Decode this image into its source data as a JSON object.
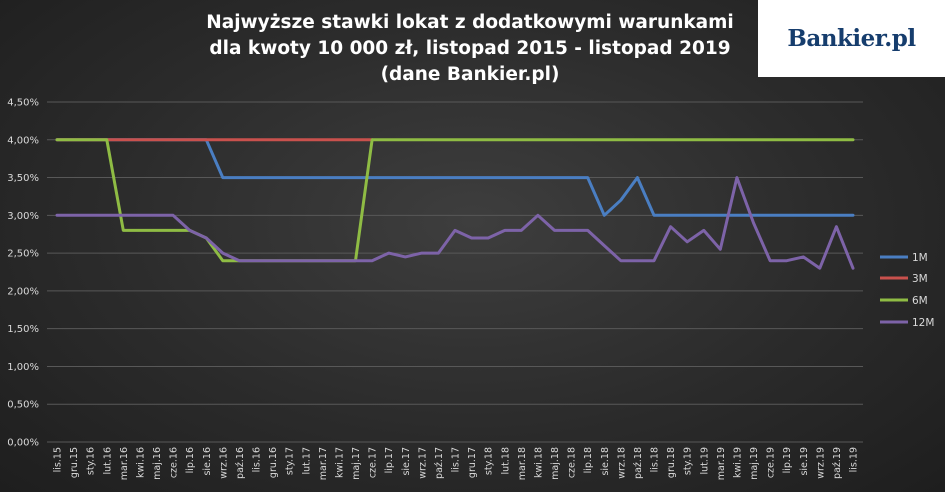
{
  "title_lines": [
    "Najwyższe stawki lokat z dodatkowymi warunkami",
    "dla kwoty 10 000 zł, listopad 2015 - listopad 2019",
    "(dane Bankier.pl)"
  ],
  "logo_text": "Bankier.pl",
  "chart_data": {
    "type": "line",
    "ylim": [
      0,
      4.5
    ],
    "y_ticks": [
      "0,00%",
      "0,50%",
      "1,00%",
      "1,50%",
      "2,00%",
      "2,50%",
      "3,00%",
      "3,50%",
      "4,00%",
      "4,50%"
    ],
    "grid": true,
    "legend_position": "right",
    "categories": [
      "lis.15",
      "gru.15",
      "sty.16",
      "lut.16",
      "mar.16",
      "kwi.16",
      "maj.16",
      "cze.16",
      "lip.16",
      "sie.16",
      "wrz.16",
      "paź.16",
      "lis.16",
      "gru.16",
      "sty.17",
      "lut.17",
      "mar.17",
      "kwi.17",
      "maj.17",
      "cze.17",
      "lip.17",
      "sie.17",
      "wrz.17",
      "paź.17",
      "lis.17",
      "gru.17",
      "sty.18",
      "lut.18",
      "mar.18",
      "kwi.18",
      "maj.18",
      "cze.18",
      "lip.18",
      "sie.18",
      "wrz.18",
      "paź.18",
      "lis.18",
      "gru.18",
      "sty.19",
      "lut.19",
      "mar.19",
      "kwi.19",
      "maj.19",
      "cze.19",
      "lip.19",
      "sie.19",
      "wrz.19",
      "paź.19",
      "lis.19"
    ],
    "series": [
      {
        "name": "1M",
        "color": "#4a7ec2",
        "values": [
          4,
          4,
          4,
          4,
          4,
          4,
          4,
          4,
          4,
          4,
          3.5,
          3.5,
          3.5,
          3.5,
          3.5,
          3.5,
          3.5,
          3.5,
          3.5,
          3.5,
          3.5,
          3.5,
          3.5,
          3.5,
          3.5,
          3.5,
          3.5,
          3.5,
          3.5,
          3.5,
          3.5,
          3.5,
          3.5,
          3.0,
          3.2,
          3.5,
          3,
          3,
          3,
          3,
          3,
          3,
          3,
          3,
          3,
          3,
          3,
          3,
          3
        ]
      },
      {
        "name": "3M",
        "color": "#c9514d",
        "values": [
          4,
          4,
          4,
          4,
          4,
          4,
          4,
          4,
          4,
          4,
          4,
          4,
          4,
          4,
          4,
          4,
          4,
          4,
          4,
          4,
          null,
          null,
          null,
          null,
          null,
          null,
          null,
          null,
          null,
          null,
          null,
          null,
          null,
          null,
          null,
          null,
          null,
          null,
          null,
          null,
          null,
          null,
          null,
          null,
          null,
          null,
          null,
          null,
          null
        ]
      },
      {
        "name": "6M",
        "color": "#8fbc44",
        "values": [
          4,
          4,
          4,
          4,
          2.8,
          2.8,
          2.8,
          2.8,
          2.8,
          2.7,
          2.4,
          2.4,
          2.4,
          2.4,
          2.4,
          2.4,
          2.4,
          2.4,
          2.4,
          4,
          4,
          4,
          4,
          4,
          4,
          4,
          4,
          4,
          4,
          4,
          4,
          4,
          4,
          4,
          4,
          4,
          4,
          4,
          4,
          4,
          4,
          4,
          4,
          4,
          4,
          4,
          4,
          4,
          4
        ]
      },
      {
        "name": "12M",
        "color": "#7d63a8",
        "values": [
          3,
          3,
          3,
          3,
          3,
          3,
          3,
          3,
          2.8,
          2.7,
          2.5,
          2.4,
          2.4,
          2.4,
          2.4,
          2.4,
          2.4,
          2.4,
          2.4,
          2.4,
          2.5,
          2.45,
          2.5,
          2.5,
          2.8,
          2.7,
          2.7,
          2.8,
          2.8,
          3.0,
          2.8,
          2.8,
          2.8,
          2.6,
          2.4,
          2.4,
          2.4,
          2.85,
          2.65,
          2.8,
          2.55,
          3.5,
          2.9,
          2.4,
          2.4,
          2.45,
          2.3,
          2.85,
          2.3
        ]
      }
    ]
  }
}
